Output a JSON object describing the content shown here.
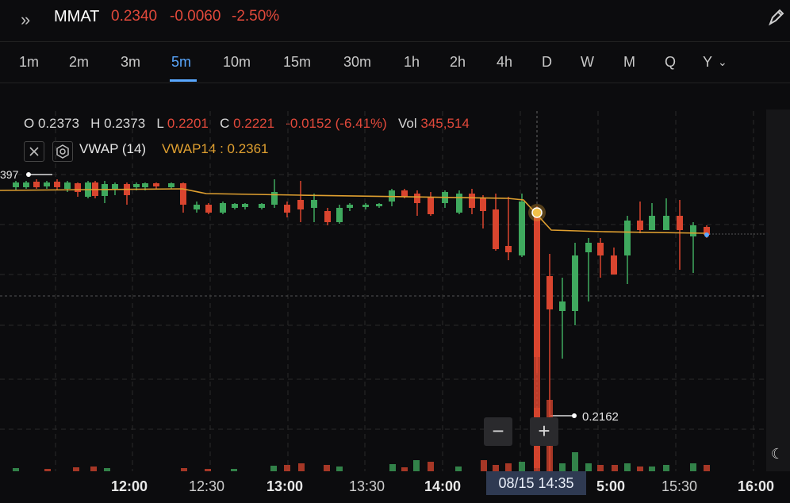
{
  "header": {
    "symbol": "MMAT",
    "last": "0.2340",
    "change": "-0.0060",
    "change_pct": "-2.50%",
    "icons": {
      "expand": "double-chevron-right-icon",
      "draw": "pencil-icon"
    }
  },
  "timeframes": {
    "items": [
      "1m",
      "2m",
      "3m",
      "5m",
      "10m",
      "15m",
      "30m",
      "1h",
      "2h",
      "4h",
      "D",
      "W",
      "M",
      "Q",
      "Y"
    ],
    "active": "5m",
    "dropdown_icon": "chevron-down-icon"
  },
  "ohlc": {
    "o_label": "O",
    "o": "0.2373",
    "h_label": "H",
    "h": "0.2373",
    "l_label": "L",
    "l": "0.2201",
    "c_label": "C",
    "c": "0.2221",
    "change": "-0.0152 (-6.41%)",
    "vol_label": "Vol",
    "vol": "345,514"
  },
  "indicator": {
    "name": "VWAP (14)",
    "value_label": "VWAP14 : 0.2361",
    "colors": {
      "vwap": "#e0a030"
    }
  },
  "annotations": {
    "left_price": "397",
    "low_price": "0.2162"
  },
  "xaxis": {
    "labels": [
      "12:00",
      "12:30",
      "13:00",
      "13:30",
      "14:00",
      "5:00",
      "15:30",
      "16:00"
    ],
    "crosshair_time": "08/15 14:35"
  },
  "zoom": {
    "minus": "−",
    "plus": "+"
  },
  "colors": {
    "up": "#3fa95e",
    "down": "#d9452f",
    "accent": "#5aa8ff",
    "bg": "#0c0c0e"
  }
}
